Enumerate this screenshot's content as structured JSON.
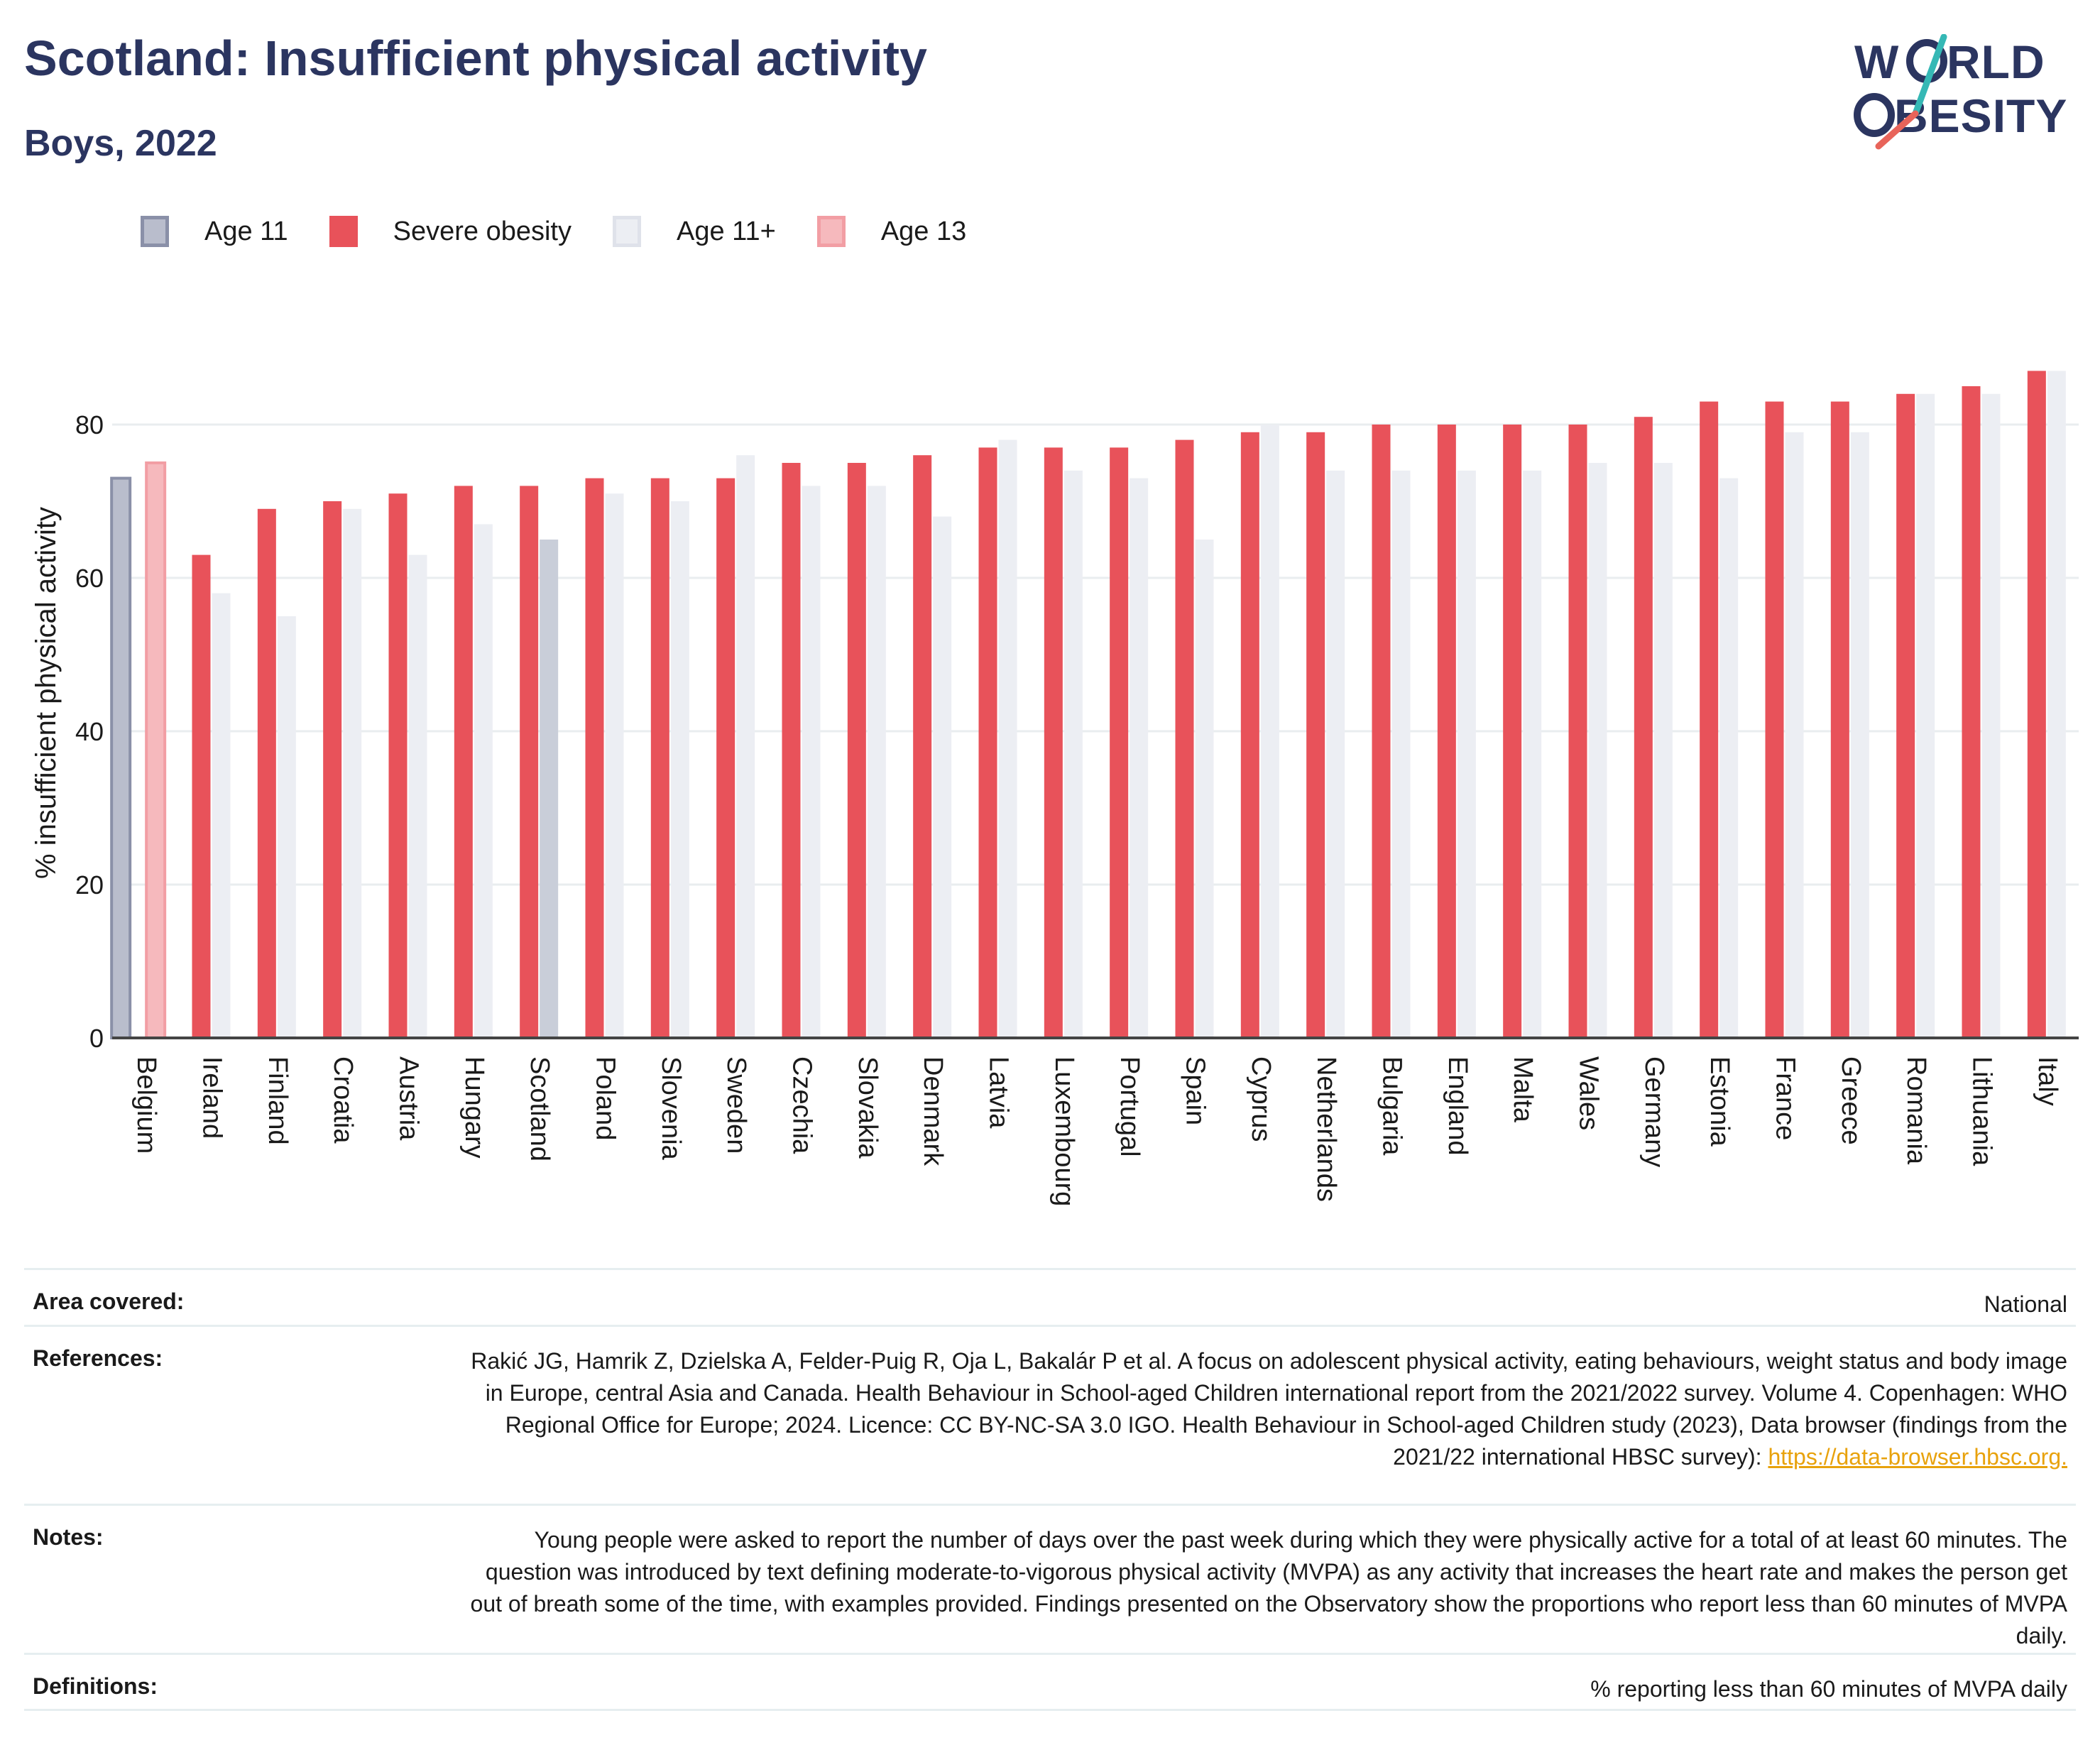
{
  "header": {
    "title": "Scotland: Insufficient physical activity",
    "subtitle": "Boys, 2022"
  },
  "logo": {
    "line1": "WØRLD",
    "line2": "ØBESITY",
    "word1": "WORLD",
    "word2": "OBESITY"
  },
  "legend": {
    "items": [
      {
        "label": "Age 11",
        "fill": "#b9bdcc",
        "border": "#8a90a8"
      },
      {
        "label": "Severe obesity",
        "fill": "#e8525a",
        "border": "#e8525a"
      },
      {
        "label": "Age 11+",
        "fill": "#eceef3",
        "border": "#dfe2ea"
      },
      {
        "label": "Age 13",
        "fill": "#f6b9bd",
        "border": "#f29ea4"
      }
    ]
  },
  "chart_data": {
    "type": "bar",
    "ylabel": "% insufficient physical activity",
    "xlabel": "",
    "ylim": [
      0,
      90
    ],
    "yticks": [
      0,
      20,
      40,
      60,
      80
    ],
    "grid": true,
    "legend_position": "top-left",
    "categories": [
      "Belgium",
      "Ireland",
      "Finland",
      "Croatia",
      "Austria",
      "Hungary",
      "Scotland",
      "Poland",
      "Slovenia",
      "Sweden",
      "Czechia",
      "Slovakia",
      "Denmark",
      "Latvia",
      "Luxembourg",
      "Portugal",
      "Spain",
      "Cyprus",
      "Netherlands",
      "Bulgaria",
      "England",
      "Malta",
      "Wales",
      "Germany",
      "Estonia",
      "France",
      "Greece",
      "Romania",
      "Lithuania",
      "Italy"
    ],
    "series": [
      {
        "name": "Age 11",
        "values": [
          73,
          null,
          null,
          null,
          null,
          null,
          null,
          null,
          null,
          null,
          null,
          null,
          null,
          null,
          null,
          null,
          null,
          null,
          null,
          null,
          null,
          null,
          null,
          null,
          null,
          null,
          null,
          null,
          null,
          null
        ]
      },
      {
        "name": "Age 13",
        "values": [
          75,
          null,
          null,
          null,
          null,
          null,
          null,
          null,
          null,
          null,
          null,
          null,
          null,
          null,
          null,
          null,
          null,
          null,
          null,
          null,
          null,
          null,
          null,
          null,
          null,
          null,
          null,
          null,
          null,
          null
        ]
      },
      {
        "name": "Severe obesity",
        "values": [
          null,
          63,
          69,
          70,
          71,
          72,
          72,
          73,
          73,
          73,
          75,
          75,
          76,
          77,
          77,
          77,
          78,
          79,
          79,
          80,
          80,
          80,
          80,
          81,
          83,
          83,
          83,
          84,
          85,
          87
        ]
      },
      {
        "name": "Age 11+",
        "values": [
          null,
          58,
          55,
          69,
          63,
          67,
          65,
          71,
          70,
          76,
          72,
          72,
          68,
          78,
          74,
          73,
          65,
          80,
          74,
          74,
          74,
          74,
          75,
          75,
          73,
          79,
          79,
          84,
          84,
          87
        ]
      }
    ],
    "highlight": "Scotland",
    "colors": {
      "severe": "#e8525a",
      "age11plus": "#eceef3",
      "age11": "#b9bdcc",
      "age13": "#f6b9bd",
      "scotland": "#c9ced9",
      "axis": "#444444",
      "grid": "#e9edef"
    }
  },
  "info": {
    "rows": [
      {
        "key": "Area covered:",
        "value": "National"
      },
      {
        "key": "References:",
        "value": "Rakić JG, Hamrik Z, Dzielska A, Felder-Puig R, Oja L, Bakalár P et al. A focus on adolescent physical activity, eating behaviours, weight status and body image in Europe, central Asia and Canada. Health Behaviour in School-aged Children international report from the 2021/2022 survey. Volume 4. Copenhagen: WHO Regional Office for Europe; 2024. Licence: CC BY-NC-SA 3.0 IGO. Health Behaviour in School-aged Children study (2023), Data browser (findings from the 2021/22 international HBSC survey): ",
        "link": "https://data-browser.hbsc.org."
      },
      {
        "key": "Notes:",
        "value": "Young people were asked to report the number of days over the past week during which they were physically active for a total of at least 60 minutes. The question was introduced by text defining moderate-to-vigorous physical activity (MVPA) as any activity that increases the heart rate and makes the person get out of breath some of the time, with examples provided. Findings presented on the Observatory show the proportions who report less than 60 minutes of MVPA daily."
      },
      {
        "key": "Definitions:",
        "value": "% reporting less than 60 minutes of MVPA daily"
      }
    ]
  }
}
